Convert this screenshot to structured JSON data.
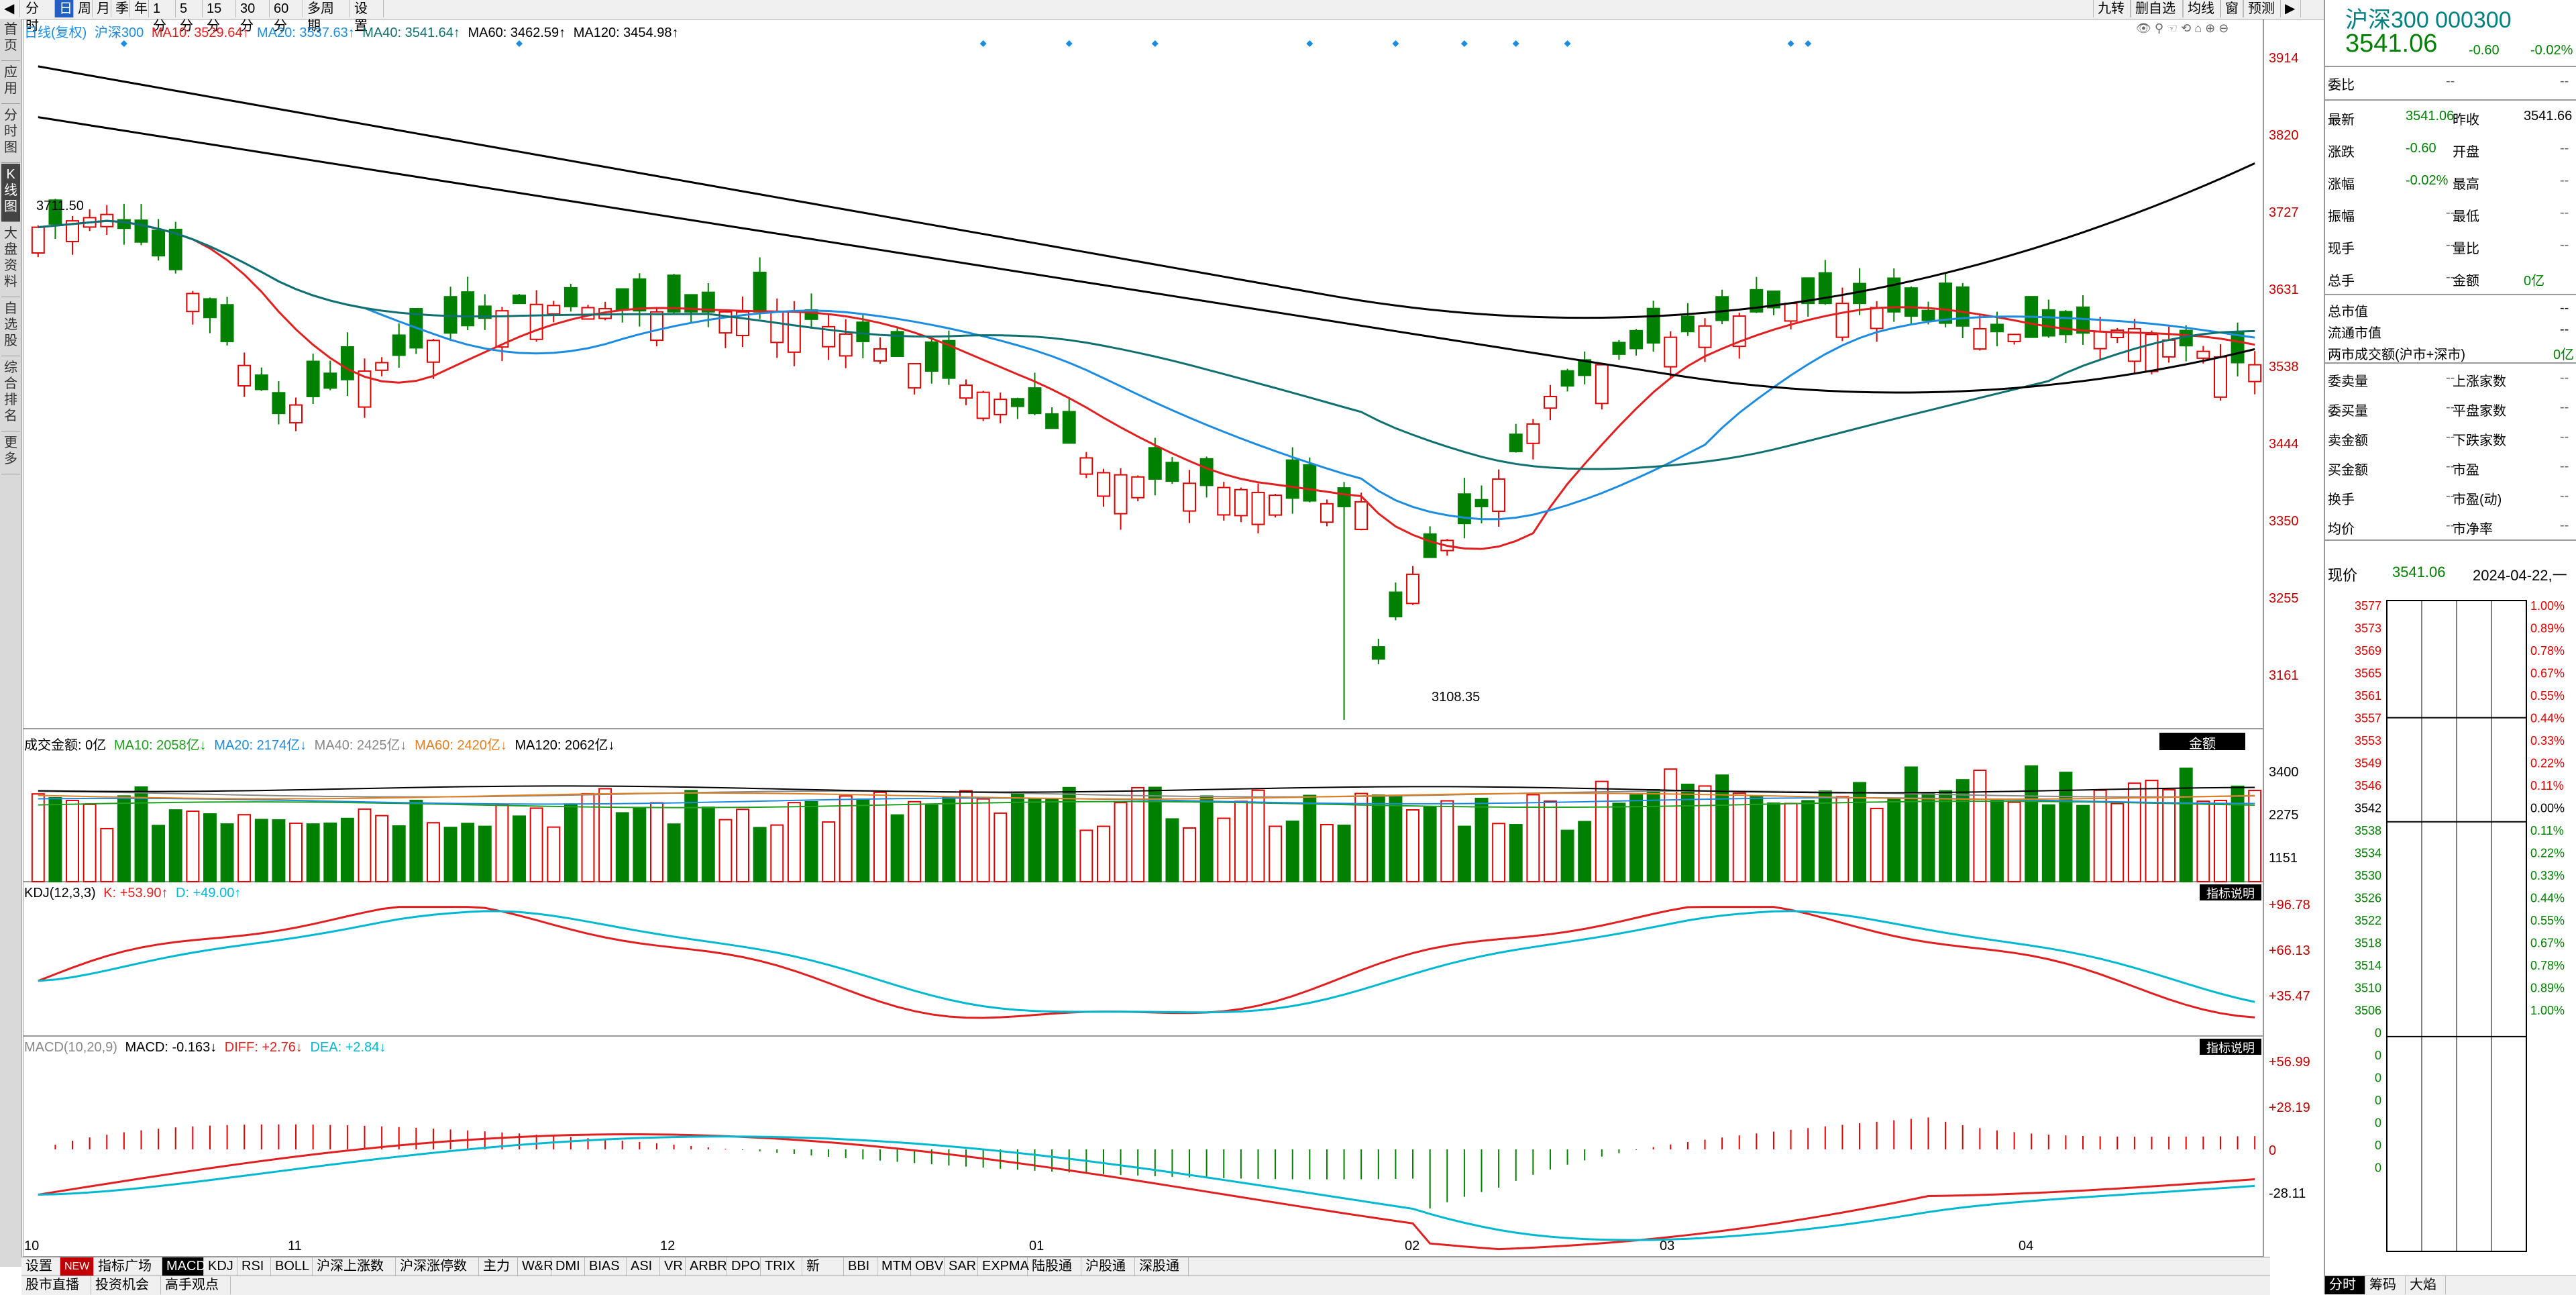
{
  "toolbar": {
    "buttons": [
      "分时",
      "日",
      "周",
      "月",
      "季",
      "年",
      "1分",
      "5分",
      "15分",
      "30分",
      "60分",
      "多周期",
      "设置"
    ],
    "active": "日",
    "right_buttons": [
      "九转",
      "删自选",
      "均线",
      "窗",
      "预测"
    ]
  },
  "left_sidebar": [
    "首页",
    "应用",
    "分时图",
    "K线图",
    "大盘资料",
    "自选股",
    "综合排名",
    "更多"
  ],
  "main_chart": {
    "legend": {
      "label": "日线(复权)",
      "name": "沪深300",
      "ma10": "MA10: 3529.64↑",
      "ma20": "MA20: 3537.63↑",
      "ma40": "MA40: 3541.64↑",
      "ma60": "MA60: 3462.59↑",
      "ma120": "MA120: 3454.98↑"
    },
    "high_marker": "3711.50",
    "low_marker": "3108.35",
    "y_ticks": [
      "3914",
      "3820",
      "3727",
      "3631",
      "3538",
      "3444",
      "3350",
      "3255",
      "3161"
    ]
  },
  "volume_chart": {
    "legend": {
      "name": "成交金额: 0亿",
      "ma10": "MA10: 2058亿↓",
      "ma20": "MA20: 2174亿↓",
      "ma40": "MA40: 2425亿↓",
      "ma60": "MA60: 2420亿↓",
      "ma120": "MA120: 2062亿↓"
    },
    "tag": "金额",
    "y_ticks": [
      "3400",
      "2275",
      "1151"
    ]
  },
  "kdj_chart": {
    "legend": {
      "name": "KDJ(12,3,3)",
      "k": "K: +53.90↑",
      "d": "D: +49.00↑"
    },
    "tag": "指标说明",
    "y_ticks": [
      "+96.78",
      "+66.13",
      "+35.47"
    ]
  },
  "macd_chart": {
    "legend": {
      "name": "MACD(10,20,9)",
      "macd": "MACD: -0.163↓",
      "diff": "DIFF: +2.76↓",
      "dea": "DEA: +2.84↓"
    },
    "tag": "指标说明",
    "y_ticks": [
      "+56.99",
      "+28.19",
      "0",
      "-28.11"
    ]
  },
  "x_labels": [
    "10",
    "11",
    "12",
    "01",
    "02",
    "03",
    "04"
  ],
  "indicator_tabs": [
    "设置",
    "NEW",
    "指标广场",
    "MACD",
    "KDJ",
    "RSI",
    "BOLL",
    "沪深上涨数",
    "沪深涨停数",
    "主力",
    "W&R",
    "DMI",
    "BIAS",
    "ASI",
    "VR",
    "ARBR",
    "DPO",
    "TRIX",
    "新DMA",
    "BBI",
    "MTM",
    "OBV",
    "SAR",
    "EXPMA",
    "陆股通",
    "沪股通",
    "深股通"
  ],
  "active_tab": "MACD",
  "bottom_tabs": [
    "股市直播",
    "投资机会",
    "高手观点"
  ],
  "right_panel": {
    "title": "沪深300 000300",
    "price": "3541.06",
    "change": "-0.60",
    "change_pct": "-0.02%",
    "weibi_label": "委比",
    "weibi_value": "--",
    "rows": [
      {
        "l1": "最新",
        "v1": "3541.06",
        "l2": "昨收",
        "v2": "3541.66"
      },
      {
        "l1": "涨跌",
        "v1": "-0.60",
        "l2": "开盘",
        "v2": "--"
      },
      {
        "l1": "涨幅",
        "v1": "-0.02%",
        "l2": "最高",
        "v2": "--"
      },
      {
        "l1": "振幅",
        "v1": "--",
        "l2": "最低",
        "v2": "--"
      },
      {
        "l1": "现手",
        "v1": "--",
        "l2": "量比",
        "v2": "--"
      },
      {
        "l1": "总手",
        "v1": "--",
        "l2": "金额",
        "v2": "0亿"
      }
    ],
    "mv_total_label": "总市值",
    "mv_total": "--",
    "mv_float_label": "流通市值",
    "mv_float": "--",
    "two_market_label": "两市成交额(沪市+深市)",
    "two_market": "0亿",
    "rows2": [
      {
        "l1": "委卖量",
        "v1": "--",
        "l2": "上涨家数",
        "v2": "--"
      },
      {
        "l1": "委买量",
        "v1": "--",
        "l2": "平盘家数",
        "v2": "--"
      },
      {
        "l1": "卖金额",
        "v1": "--",
        "l2": "下跌家数",
        "v2": "--"
      },
      {
        "l1": "买金额",
        "v1": "--",
        "l2": "市盈",
        "v2": "--"
      },
      {
        "l1": "换手",
        "v1": "--",
        "l2": "市盈(动)",
        "v2": "--"
      },
      {
        "l1": "均价",
        "v1": "--",
        "l2": "市净率",
        "v2": "--"
      }
    ],
    "current_label": "现价",
    "current_price": "3541.06",
    "current_date": "2024-04-22,一",
    "price_ticks": [
      "3577",
      "3573",
      "3569",
      "3565",
      "3561",
      "3557",
      "3553",
      "3549",
      "3546",
      "3542",
      "3538",
      "3534",
      "3530",
      "3526",
      "3522",
      "3518",
      "3514",
      "3510",
      "3506",
      "0",
      "0",
      "0",
      "0",
      "0",
      "0",
      "0"
    ],
    "pct_ticks": [
      "1.00%",
      "0.89%",
      "0.78%",
      "0.67%",
      "0.55%",
      "0.44%",
      "0.33%",
      "0.22%",
      "0.11%",
      "0.00%",
      "0.11%",
      "0.22%",
      "0.33%",
      "0.44%",
      "0.55%",
      "0.67%",
      "0.78%",
      "0.89%",
      "1.00%"
    ],
    "bottom_tabs": [
      "分时",
      "筹码",
      "大焰"
    ]
  },
  "colors": {
    "up": "#e00000",
    "down": "#008000",
    "ma10": "#e02020",
    "ma20": "#1c8ce0",
    "ma40": "#107070",
    "ma60": "#000000",
    "ma120": "#000000"
  }
}
